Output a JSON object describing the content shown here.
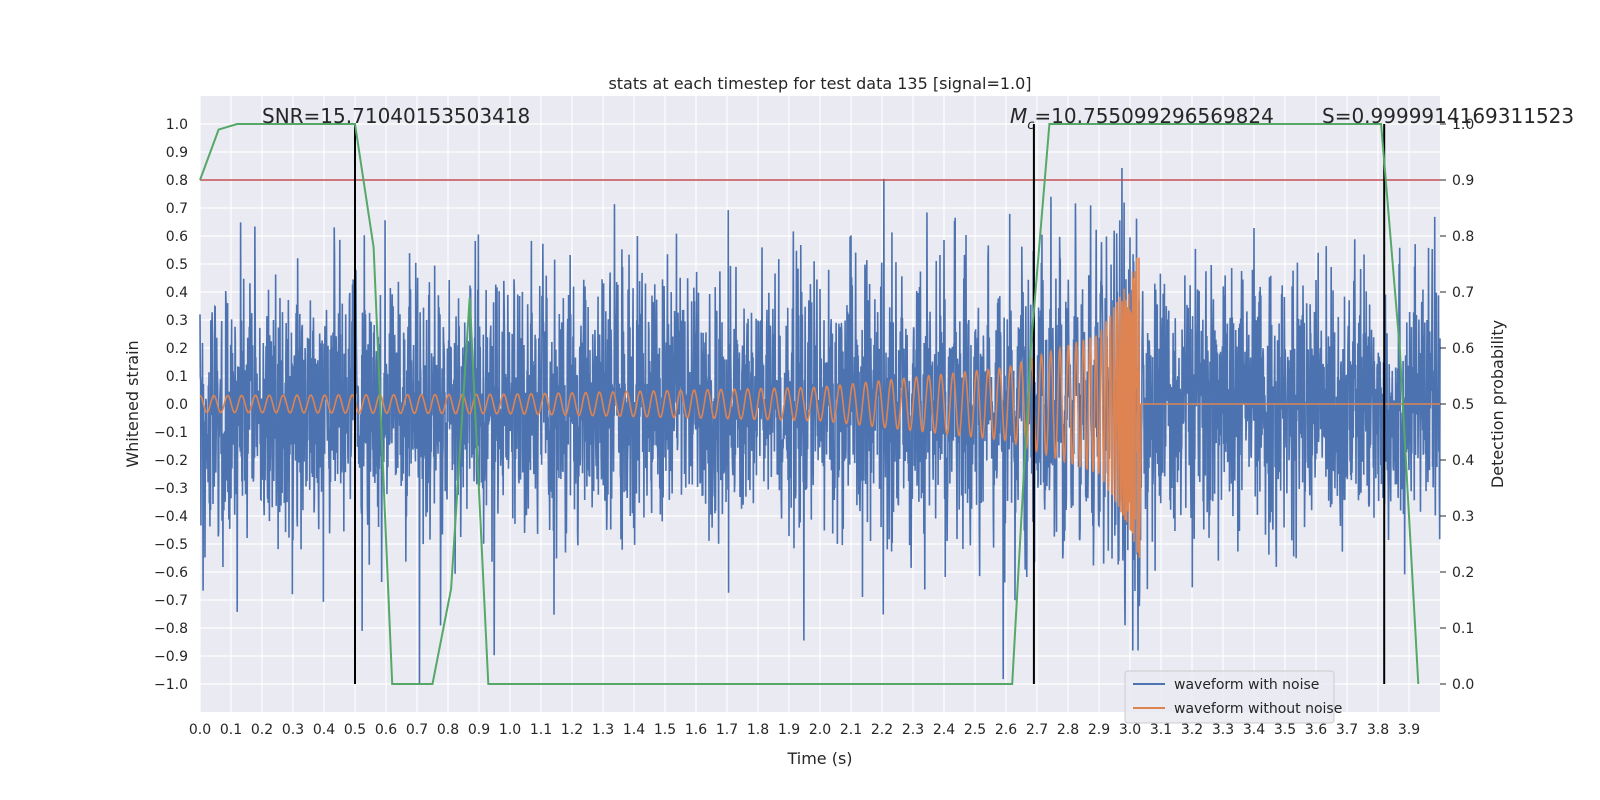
{
  "chart_data": {
    "type": "line",
    "title": "stats at each timestep for test data 135 [signal=1.0]",
    "xlabel": "Time (s)",
    "ylabel": "Whitened strain",
    "y2label": "Detection probability",
    "xlim": [
      0.0,
      4.0
    ],
    "ylim": [
      -1.1,
      1.1
    ],
    "y2lim": [
      -0.05,
      1.05
    ],
    "x_ticks": [
      "0.0",
      "0.1",
      "0.2",
      "0.3",
      "0.4",
      "0.5",
      "0.6",
      "0.7",
      "0.8",
      "0.9",
      "1.0",
      "1.1",
      "1.2",
      "1.3",
      "1.4",
      "1.5",
      "1.6",
      "1.7",
      "1.8",
      "1.9",
      "2.0",
      "2.1",
      "2.2",
      "2.3",
      "2.4",
      "2.5",
      "2.6",
      "2.7",
      "2.8",
      "2.9",
      "3.0",
      "3.1",
      "3.2",
      "3.3",
      "3.4",
      "3.5",
      "3.6",
      "3.7",
      "3.8",
      "3.9"
    ],
    "y_ticks": [
      "1.0",
      "0.9",
      "0.8",
      "0.7",
      "0.6",
      "0.5",
      "0.4",
      "0.3",
      "0.2",
      "0.1",
      "0.0",
      "−0.1",
      "−0.2",
      "−0.3",
      "−0.4",
      "−0.5",
      "−0.6",
      "−0.7",
      "−0.8",
      "−0.9",
      "−1.0"
    ],
    "y2_ticks": [
      "1.0",
      "0.9",
      "0.8",
      "0.7",
      "0.6",
      "0.5",
      "0.4",
      "0.3",
      "0.2",
      "0.1",
      "0.0"
    ],
    "grid": true,
    "legend_position": "lower-right",
    "series": [
      {
        "name": "waveform with noise",
        "color": "#4c72b0",
        "axis": "left",
        "description": "noisy whitened strain, amplitude mostly within ±0.5 with spikes up to ±1.0",
        "noise_amplitude": 0.3
      },
      {
        "name": "waveform without noise",
        "color": "#dd8452",
        "axis": "left",
        "description": "chirp waveform growing in amplitude until merger near t=3.03 s, then zero",
        "chirp_points": [
          [
            0.0,
            0.03
          ],
          [
            1.0,
            0.035
          ],
          [
            2.0,
            0.06
          ],
          [
            2.6,
            0.13
          ],
          [
            2.9,
            0.25
          ],
          [
            3.0,
            0.45
          ],
          [
            3.03,
            0.55
          ],
          [
            3.04,
            0.0
          ],
          [
            4.0,
            0.0
          ]
        ]
      },
      {
        "color": "#55a868",
        "axis": "right",
        "x": [
          0.0,
          0.06,
          0.12,
          0.5,
          0.56,
          0.62,
          0.75,
          0.81,
          0.87,
          0.93,
          1.0,
          2.62,
          2.68,
          2.74,
          3.81,
          3.87,
          3.93
        ],
        "y": [
          0.9,
          0.99,
          1.0,
          1.0,
          0.78,
          0.0,
          0.0,
          0.17,
          0.69,
          0.0,
          0.0,
          0.0,
          0.6,
          1.0,
          1.0,
          0.6,
          0.0
        ]
      }
    ],
    "threshold": {
      "value": 0.8,
      "axis": "left",
      "color": "#c44e52"
    },
    "vlines": {
      "x": [
        0.5,
        2.69,
        3.82
      ],
      "color": "#000000",
      "ylim": [
        -1.0,
        1.0
      ]
    },
    "annotations": {
      "snr": "SNR=15.71040153503418",
      "mc_symbol": "M",
      "mc_subscript": "c",
      "mc_value": "=10.755099296569824",
      "s": "S=0.9999914169311523"
    },
    "legend": [
      "waveform with noise",
      "waveform without noise"
    ]
  }
}
